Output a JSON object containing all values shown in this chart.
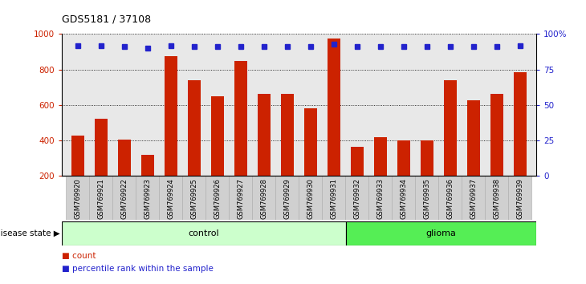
{
  "title": "GDS5181 / 37108",
  "samples": [
    "GSM769920",
    "GSM769921",
    "GSM769922",
    "GSM769923",
    "GSM769924",
    "GSM769925",
    "GSM769926",
    "GSM769927",
    "GSM769928",
    "GSM769929",
    "GSM769930",
    "GSM769931",
    "GSM769932",
    "GSM769933",
    "GSM769934",
    "GSM769935",
    "GSM769936",
    "GSM769937",
    "GSM769938",
    "GSM769939"
  ],
  "counts": [
    430,
    525,
    405,
    320,
    875,
    740,
    650,
    850,
    665,
    665,
    580,
    975,
    365,
    420,
    400,
    400,
    740,
    625,
    665,
    785
  ],
  "percentiles": [
    92,
    92,
    91,
    90,
    92,
    91,
    91,
    91,
    91,
    91,
    91,
    93,
    91,
    91,
    91,
    91,
    91,
    91,
    91,
    92
  ],
  "control_count": 12,
  "glioma_count": 8,
  "bar_color": "#cc2200",
  "dot_color": "#2222cc",
  "plot_bg": "#e8e8e8",
  "control_color": "#ccffcc",
  "glioma_color": "#55ee55",
  "ylim_left": [
    200,
    1000
  ],
  "ylim_right": [
    0,
    100
  ],
  "yticks_left": [
    200,
    400,
    600,
    800,
    1000
  ],
  "yticks_right": [
    0,
    25,
    50,
    75,
    100
  ],
  "grid_values": [
    400,
    600,
    800,
    1000
  ],
  "legend_count_label": "count",
  "legend_pct_label": "percentile rank within the sample",
  "disease_state_label": "disease state",
  "control_label": "control",
  "glioma_label": "glioma"
}
